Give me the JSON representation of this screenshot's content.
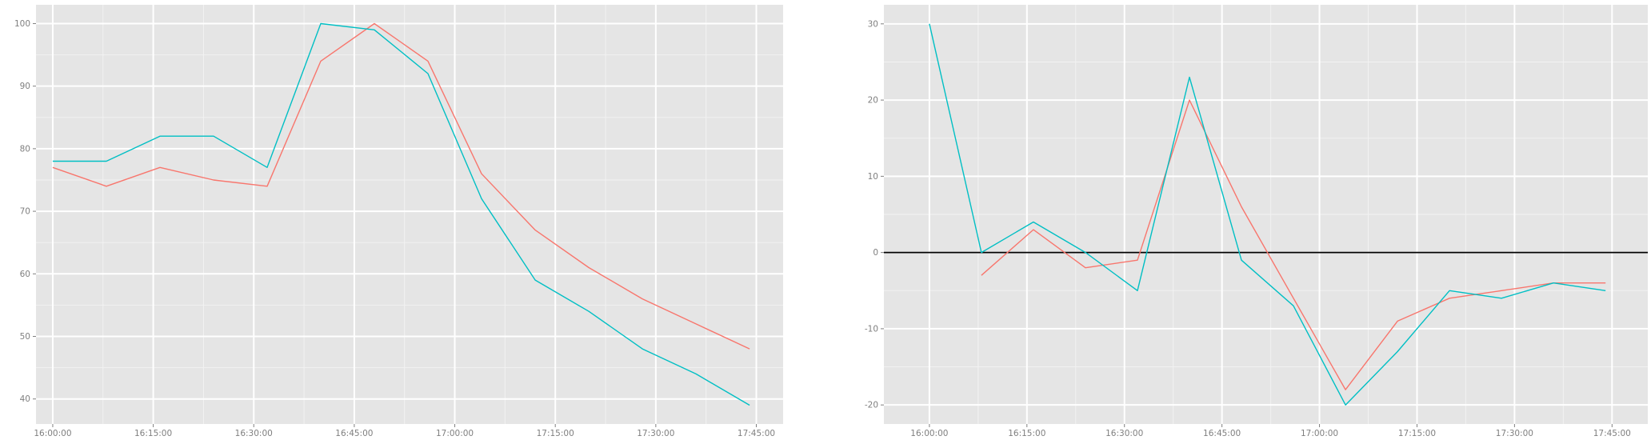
{
  "chart_data": [
    {
      "type": "line",
      "title": "",
      "xlabel": "",
      "ylabel": "",
      "x": [
        "16:00:00",
        "16:08:00",
        "16:16:00",
        "16:24:00",
        "16:32:00",
        "16:40:00",
        "16:48:00",
        "16:56:00",
        "17:04:00",
        "17:12:00",
        "17:20:00",
        "17:28:00",
        "17:36:00",
        "17:44:00"
      ],
      "xlim": [
        "15:57:30",
        "17:49:00"
      ],
      "ylim": [
        36,
        103
      ],
      "x_ticks": [
        "16:00:00",
        "16:15:00",
        "16:30:00",
        "16:45:00",
        "17:00:00",
        "17:15:00",
        "17:30:00",
        "17:45:00"
      ],
      "y_ticks": [
        40,
        50,
        60,
        70,
        80,
        90,
        100
      ],
      "grid": true,
      "series": [
        {
          "color": "#F8766D",
          "values": [
            77,
            74,
            77,
            75,
            74,
            94,
            100,
            94,
            76,
            67,
            61,
            56,
            52,
            48
          ]
        },
        {
          "color": "#00BFC4",
          "values": [
            78,
            78,
            82,
            82,
            77,
            100,
            99,
            92,
            72,
            59,
            54,
            48,
            44,
            39
          ]
        }
      ]
    },
    {
      "type": "line",
      "title": "",
      "xlabel": "",
      "ylabel": "",
      "x": [
        "16:00:00",
        "16:08:00",
        "16:16:00",
        "16:24:00",
        "16:32:00",
        "16:40:00",
        "16:48:00",
        "16:56:00",
        "17:04:00",
        "17:12:00",
        "17:20:00",
        "17:28:00",
        "17:36:00",
        "17:44:00"
      ],
      "xlim": [
        "15:53:00",
        "17:50:30"
      ],
      "ylim": [
        -22.5,
        32.5
      ],
      "x_ticks": [
        "16:00:00",
        "16:15:00",
        "16:30:00",
        "16:45:00",
        "17:00:00",
        "17:15:00",
        "17:30:00",
        "17:45:00"
      ],
      "y_ticks": [
        -20,
        -10,
        0,
        10,
        20,
        30
      ],
      "grid": true,
      "reference_line_y": 0,
      "series": [
        {
          "color": "#F8766D",
          "values": [
            null,
            -3,
            3,
            -2,
            -1,
            20,
            6,
            -6,
            -18,
            -9,
            -6,
            -5,
            -4,
            -4
          ]
        },
        {
          "color": "#00BFC4",
          "values": [
            30,
            0,
            4,
            0,
            -5,
            23,
            -1,
            -7,
            -20,
            -13,
            -5,
            -6,
            -4,
            -5
          ]
        }
      ]
    }
  ]
}
